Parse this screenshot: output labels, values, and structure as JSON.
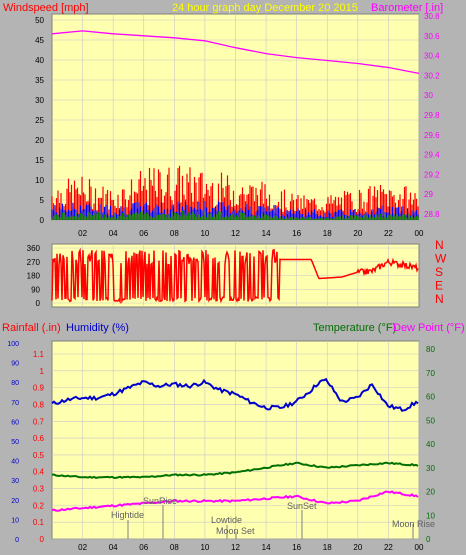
{
  "header": {
    "windspeed_label": "Windspeed [mph]",
    "graph_title": "24 hour graph day   December 20 2015",
    "barometer_label": "Barometer [.in]"
  },
  "top_chart": {
    "x_ticks": [
      "02",
      "04",
      "06",
      "08",
      "10",
      "12",
      "14",
      "16",
      "18",
      "20",
      "22",
      "00"
    ],
    "wind_ticks": [
      "50",
      "45",
      "40",
      "35",
      "30",
      "25",
      "20",
      "15",
      "10",
      "5",
      "0"
    ],
    "baro_ticks": [
      "30.8",
      "30.6",
      "30.4",
      "30.2",
      "30",
      "29.8",
      "29.6",
      "29.4",
      "29.2",
      "29",
      "28.8"
    ]
  },
  "direction_chart": {
    "y_ticks": [
      "360",
      "270",
      "180",
      "90",
      "0"
    ],
    "compass_labels": [
      "N",
      "W",
      "S",
      "E",
      "N"
    ]
  },
  "bottom_header": {
    "rainfall_label": "Rainfall (.in)",
    "humidity_label": "Humidity (%)",
    "temperature_label": "Temperature (°F)",
    "dewpoint_label": "Dew Point (°F)"
  },
  "bottom_chart": {
    "humidity_ticks": [
      "100",
      "90",
      "80",
      "70",
      "60",
      "50",
      "40",
      "30",
      "20",
      "10",
      "0"
    ],
    "rain_ticks": [
      "1.1",
      "1",
      "0.9",
      "0.8",
      "0.7",
      "0.6",
      "0.5",
      "0.4",
      "0.3",
      "0.2",
      "0.1",
      "0"
    ],
    "temp_ticks": [
      "80",
      "70",
      "60",
      "50",
      "40",
      "30",
      "20",
      "10",
      "0"
    ],
    "x_ticks": [
      "02",
      "04",
      "06",
      "08",
      "10",
      "12",
      "14",
      "16",
      "18",
      "20",
      "22",
      "00"
    ]
  },
  "events": {
    "hightide": "Hightide",
    "sunrise": "SunRise",
    "lowtide": "Lowtide",
    "moonset": "Moon Set",
    "sunset": "SunSet",
    "moonrise": "Moon Rise"
  },
  "colors": {
    "wind_max": "#ff0000",
    "wind_avg": "#0000ff",
    "wind_min": "#008000",
    "barometer": "#ff00ff",
    "direction": "#ff0000",
    "humidity": "#0000cc",
    "temperature": "#007000",
    "dewpoint": "#ff00ff",
    "plot_bg": "#ffffb0"
  },
  "chart_data": [
    {
      "type": "line",
      "x_axis": "hour of day (00 = midnight)",
      "ylim_left": [
        0,
        50
      ],
      "ylim_right": [
        28.7,
        30.85
      ],
      "series": [
        {
          "name": "Barometer",
          "axis": "right",
          "x": [
            0,
            2,
            4,
            6,
            8,
            10,
            12,
            14,
            16,
            18,
            20,
            22,
            24
          ],
          "values": [
            30.62,
            30.65,
            30.62,
            30.6,
            30.58,
            30.55,
            30.48,
            30.42,
            30.38,
            30.35,
            30.32,
            30.28,
            30.22
          ]
        },
        {
          "axis": "left",
          "x": [
            0,
            2,
            4,
            6,
            8,
            10,
            12,
            14,
            16,
            18,
            20,
            22,
            24
          ],
          "values": [
            6,
            7,
            5,
            8,
            9,
            8,
            7,
            6,
            4,
            4,
            5,
            6,
            5
          ]
        },
        {
          "axis": "left",
          "x": [
            0,
            2,
            4,
            6,
            8,
            10,
            12,
            14,
            16,
            18,
            20,
            22,
            24
          ],
          "values": [
            2.5,
            3,
            2.5,
            3,
            3,
            3,
            3,
            2.5,
            2,
            1.5,
            2,
            2.5,
            2
          ]
        },
        {
          "axis": "left",
          "x": [
            0,
            2,
            4,
            6,
            8,
            10,
            12,
            14,
            16,
            18,
            20,
            22,
            24
          ],
          "values": [
            1,
            1.5,
            1,
            1.5,
            1.5,
            1.5,
            1.5,
            1,
            0.5,
            0.5,
            1,
            1,
            1
          ]
        }
      ]
    },
    {
      "type": "line",
      "ylim": [
        0,
        360
      ],
      "series": [
        {
          "x": [
            0,
            3,
            6.5,
            7.2,
            9,
            13,
            14.5,
            15,
            16.5,
            17,
            17.5,
            19,
            20,
            21,
            22,
            23,
            24
          ],
          "values": [
            260,
            240,
            20,
            300,
            260,
            250,
            40,
            285,
            285,
            285,
            160,
            170,
            200,
            210,
            270,
            250,
            230
          ]
        }
      ]
    },
    {
      "type": "line",
      "ylim_left": [
        0,
        100
      ],
      "ylim_right": [
        0,
        85
      ],
      "series": [
        {
          "name": "Humidity",
          "axis": "left",
          "x": [
            0,
            1,
            2,
            3,
            4,
            5,
            6,
            7,
            8,
            9,
            10,
            11,
            12,
            13,
            14,
            15,
            16,
            17,
            17.5,
            18,
            19,
            20,
            21,
            22,
            23,
            24
          ],
          "values": [
            69,
            71,
            72,
            72,
            74,
            77,
            80,
            78,
            79,
            78,
            80,
            76,
            74,
            70,
            67,
            67,
            70,
            76,
            80,
            81,
            70,
            72,
            79,
            68,
            66,
            70
          ]
        },
        {
          "name": "Temperature",
          "axis": "right",
          "x": [
            0,
            2,
            4,
            6,
            8,
            10,
            12,
            14,
            16,
            18,
            20,
            22,
            24
          ],
          "values": [
            27,
            26,
            26,
            26,
            27,
            27,
            28,
            30,
            32,
            30,
            31,
            32,
            31
          ]
        },
        {
          "name": "Dew Point",
          "axis": "right",
          "x": [
            0,
            2,
            4,
            6,
            8,
            10,
            12,
            14,
            16,
            18,
            20,
            22,
            24
          ],
          "values": [
            12,
            13,
            14,
            15,
            16,
            16,
            16,
            17,
            18,
            15,
            16,
            20,
            18
          ]
        },
        {
          "name": "Rainfall",
          "axis": "left",
          "x": [
            0,
            24
          ],
          "values": [
            0,
            0
          ]
        }
      ]
    }
  ]
}
